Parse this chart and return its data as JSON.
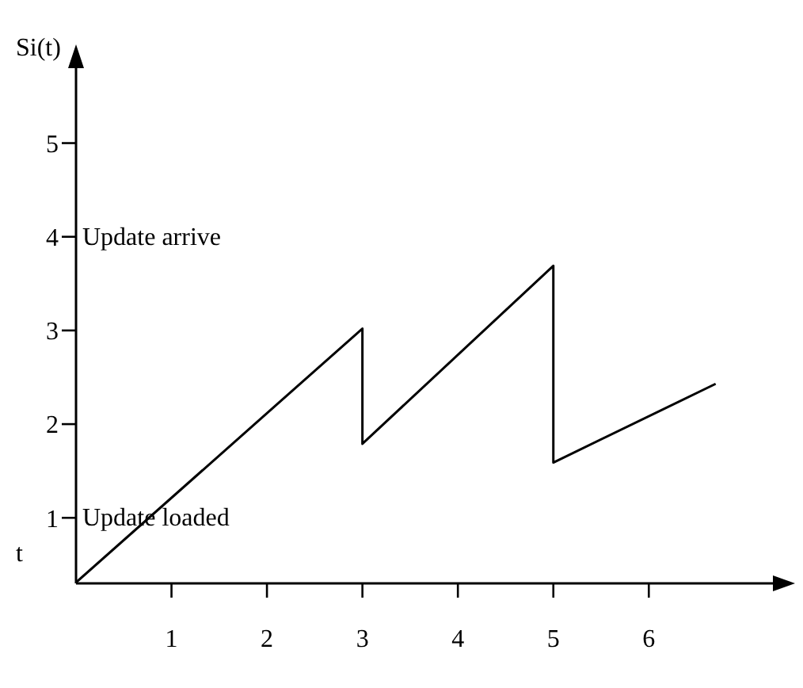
{
  "chart_data": {
    "type": "line",
    "xlabel": "t",
    "ylabel": "Si(t)",
    "x": [
      0,
      3,
      3,
      5,
      5,
      6.7
    ],
    "series": [
      {
        "color": "#000000",
        "values": [
          0.31,
          3.02,
          1.79,
          3.69,
          1.59,
          2.43
        ]
      }
    ],
    "xlim": [
      0,
      7.3
    ],
    "xticks": [
      1,
      2,
      3,
      4,
      5,
      6
    ],
    "ylim": [
      0.3,
      5.8
    ],
    "yticks": [
      1,
      2,
      3,
      4,
      5
    ],
    "annotations": [
      "Update arrive",
      "Update loaded"
    ],
    "grid": false,
    "legend": false,
    "marker": "none",
    "line_style": "solid"
  }
}
